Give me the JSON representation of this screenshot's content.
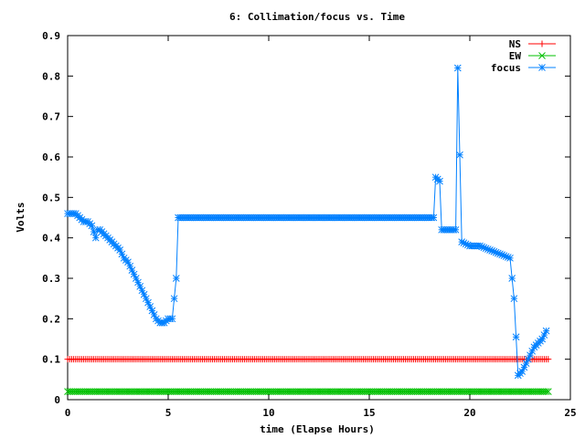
{
  "chart_data": {
    "type": "line",
    "title": "6: Collimation/focus vs. Time",
    "xlabel": "time (Elapse Hours)",
    "ylabel": "Volts",
    "xlim": [
      0,
      25
    ],
    "ylim": [
      0,
      0.9
    ],
    "xticks": [
      0,
      5,
      10,
      15,
      20,
      25
    ],
    "yticks": [
      0,
      0.1,
      0.2,
      0.3,
      0.4,
      0.5,
      0.6,
      0.7,
      0.8,
      0.9
    ],
    "xtick_labels": [
      "0",
      "5",
      "10",
      "15",
      "20",
      "25"
    ],
    "ytick_labels": [
      "0",
      "0.1",
      "0.2",
      "0.3",
      "0.4",
      "0.5",
      "0.6",
      "0.7",
      "0.8",
      "0.9"
    ],
    "grid": false,
    "legend_position": "top-right",
    "series": [
      {
        "name": "NS",
        "color": "#ff0000",
        "marker": "plus",
        "x": [
          0,
          23.9
        ],
        "y": [
          0.1,
          0.1
        ]
      },
      {
        "name": "EW",
        "color": "#00c000",
        "marker": "cross",
        "x": [
          0,
          23.9
        ],
        "y": [
          0.02,
          0.02
        ]
      },
      {
        "name": "focus",
        "color": "#0080ff",
        "marker": "star",
        "x": [
          0,
          0.2,
          0.4,
          0.6,
          0.8,
          1.0,
          1.2,
          1.4,
          1.5,
          1.6,
          1.8,
          2.0,
          2.2,
          2.4,
          2.6,
          2.8,
          3.0,
          3.2,
          3.4,
          3.6,
          3.8,
          4.0,
          4.2,
          4.4,
          4.6,
          4.8,
          5.0,
          5.2,
          5.4,
          5.5,
          5.6,
          5.8,
          6.0,
          18.0,
          18.2,
          18.3,
          18.5,
          18.6,
          19.0,
          19.3,
          19.4,
          19.6,
          20.0,
          20.5,
          21.0,
          21.5,
          22.0,
          22.2,
          22.4,
          22.6,
          22.8,
          23.0,
          23.2,
          23.4,
          23.6,
          23.8
        ],
        "y": [
          0.46,
          0.46,
          0.46,
          0.45,
          0.44,
          0.44,
          0.43,
          0.4,
          0.42,
          0.42,
          0.41,
          0.4,
          0.39,
          0.38,
          0.37,
          0.35,
          0.34,
          0.32,
          0.3,
          0.28,
          0.26,
          0.24,
          0.22,
          0.2,
          0.19,
          0.19,
          0.2,
          0.2,
          0.3,
          0.45,
          0.45,
          0.45,
          0.45,
          0.45,
          0.45,
          0.55,
          0.54,
          0.42,
          0.42,
          0.42,
          0.82,
          0.39,
          0.38,
          0.38,
          0.37,
          0.36,
          0.35,
          0.25,
          0.06,
          0.07,
          0.09,
          0.11,
          0.13,
          0.14,
          0.15,
          0.17
        ]
      }
    ]
  }
}
